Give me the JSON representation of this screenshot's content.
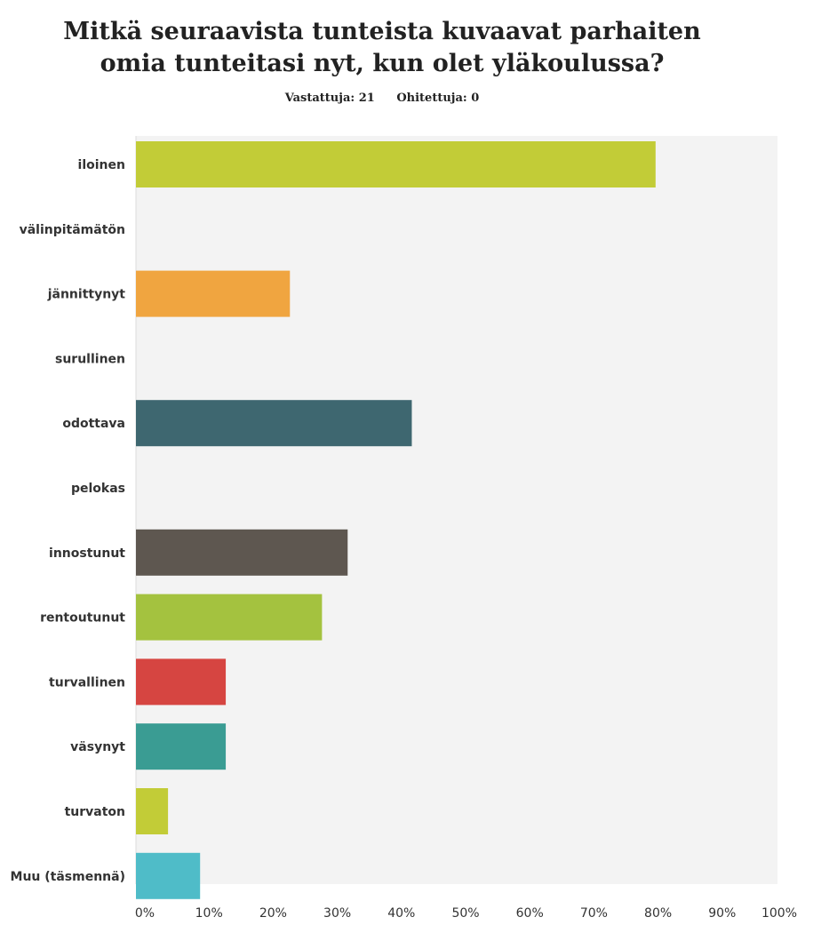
{
  "page": {
    "title_line1": "Mitkä seuraavista tunteista kuvaavat parhaiten",
    "title_line2": "omia tunteitasi nyt, kun olet yläkoulussa?",
    "answered": "Vastattuja: 21",
    "skipped": "Ohitettuja: 0"
  },
  "chart_data": {
    "type": "bar",
    "orientation": "horizontal",
    "title": "Mitkä seuraavista tunteista kuvaavat parhaiten omia tunteitasi nyt, kun olet yläkoulussa?",
    "subtitle": "Vastattuja: 21    Ohitettuja: 0",
    "categories": [
      "iloinen",
      "välinpitämätön",
      "jännittynyt",
      "surullinen",
      "odottava",
      "pelokas",
      "innostunut",
      "rentoutunut",
      "turvallinen",
      "väsynyt",
      "turvaton",
      "Muu (täsmennä)"
    ],
    "values": [
      81,
      0,
      24,
      0,
      43,
      0,
      33,
      29,
      14,
      14,
      5,
      10
    ],
    "unit": "%",
    "xlim": [
      0,
      100
    ],
    "xticks": [
      "0%",
      "10%",
      "20%",
      "30%",
      "40%",
      "50%",
      "60%",
      "70%",
      "80%",
      "90%",
      "100%"
    ],
    "colors": [
      "#c2cc37",
      "#c2cc37",
      "#f0a540",
      "#c2cc37",
      "#3e6770",
      "#c2cc37",
      "#5e5750",
      "#a4c23f",
      "#d64541",
      "#3a9c93",
      "#c2cc37",
      "#4fbcc8"
    ],
    "grid": false,
    "plot_background": "#f3f3f3"
  }
}
